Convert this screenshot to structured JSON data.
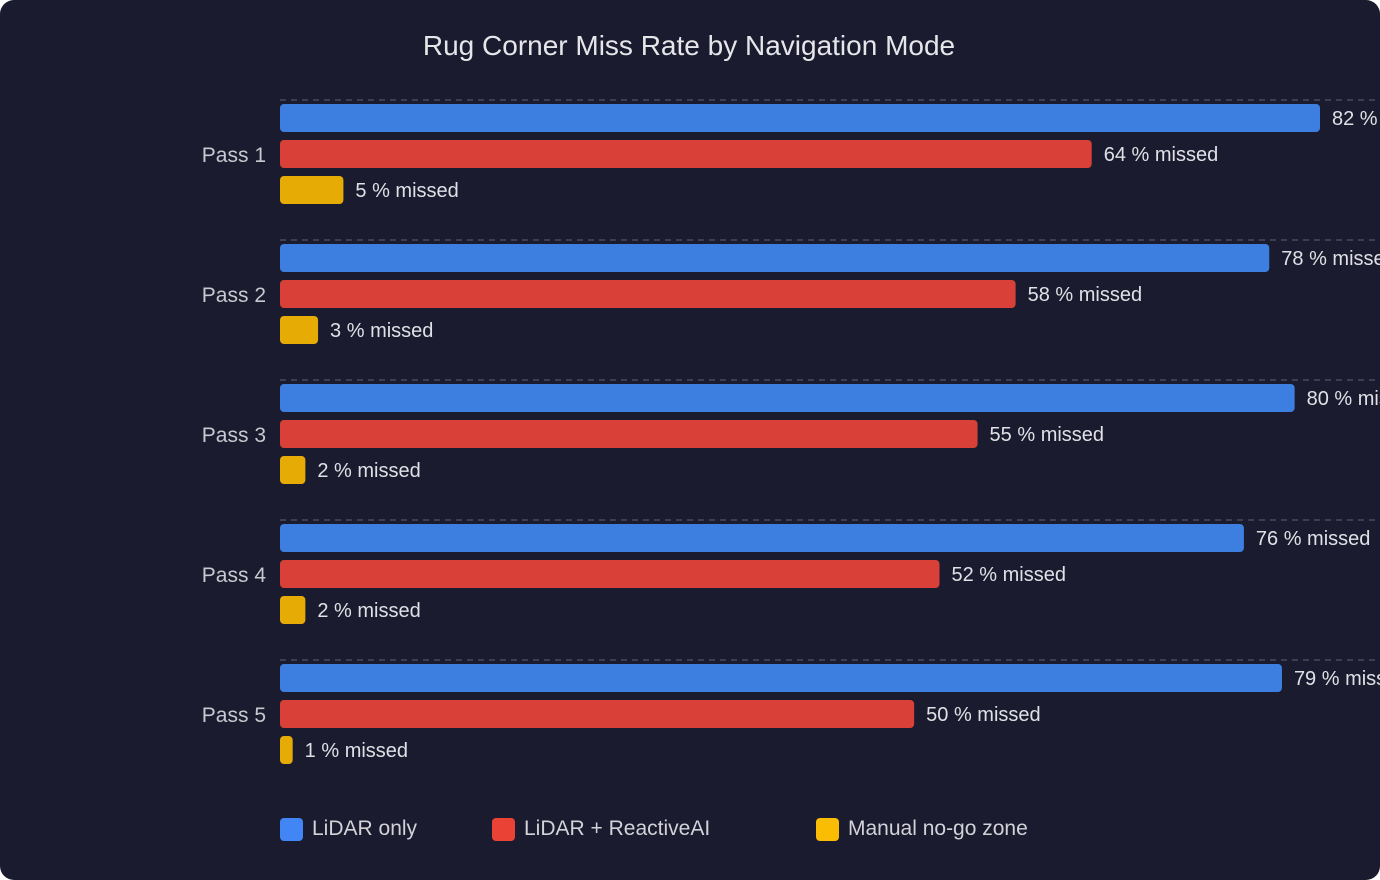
{
  "chart_data": {
    "type": "bar",
    "orientation": "horizontal",
    "title": "Rug Corner Miss Rate by Navigation Mode",
    "categories": [
      "Pass 1",
      "Pass 2",
      "Pass 3",
      "Pass 4",
      "Pass 5"
    ],
    "value_suffix": " % missed",
    "series": [
      {
        "name": "LiDAR only",
        "color": "#3d7fe0",
        "legend_color": "#4285f4",
        "values": [
          82,
          78,
          80,
          76,
          79
        ]
      },
      {
        "name": "LiDAR + ReactiveAI",
        "color": "#d94037",
        "legend_color": "#ea4335",
        "values": [
          64,
          58,
          55,
          52,
          50
        ]
      },
      {
        "name": "Manual no-go zone",
        "color": "#e6ab05",
        "legend_color": "#fbbc04",
        "values": [
          5,
          3,
          2,
          2,
          1
        ]
      }
    ],
    "xlim": [
      0,
      100
    ],
    "grid": "dashed separators between groups",
    "legend_position": "bottom-left",
    "background": "#1a1b2e"
  }
}
